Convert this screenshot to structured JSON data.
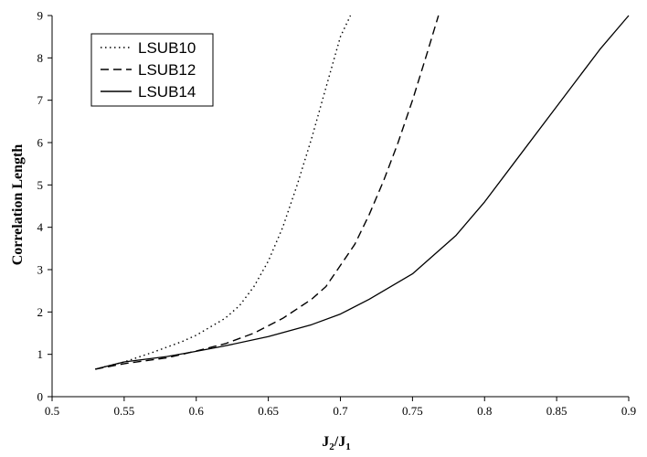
{
  "chart_data": {
    "type": "line",
    "title": "",
    "xlabel": {
      "main": "J",
      "sub1": "2",
      "slash": "/",
      "main2": "J",
      "sub2": "1"
    },
    "ylabel": "Correlation Length",
    "xlim": [
      0.5,
      0.9
    ],
    "ylim": [
      0,
      9
    ],
    "xticks": [
      "0.5",
      "0.55",
      "0.6",
      "0.65",
      "0.7",
      "0.75",
      "0.8",
      "0.85",
      "0.9"
    ],
    "yticks": [
      "0",
      "1",
      "2",
      "3",
      "4",
      "5",
      "6",
      "7",
      "8",
      "9"
    ],
    "grid": false,
    "legend_position": "top-left",
    "series": [
      {
        "name": "LSUB10",
        "dash": "dotted",
        "points": [
          [
            0.53,
            0.65
          ],
          [
            0.55,
            0.82
          ],
          [
            0.57,
            1.05
          ],
          [
            0.59,
            1.3
          ],
          [
            0.6,
            1.45
          ],
          [
            0.62,
            1.85
          ],
          [
            0.63,
            2.15
          ],
          [
            0.64,
            2.6
          ],
          [
            0.65,
            3.2
          ],
          [
            0.66,
            4.0
          ],
          [
            0.67,
            5.0
          ],
          [
            0.68,
            6.1
          ],
          [
            0.69,
            7.3
          ],
          [
            0.7,
            8.5
          ],
          [
            0.707,
            9.0
          ]
        ]
      },
      {
        "name": "LSUB12",
        "dash": "dashed",
        "points": [
          [
            0.53,
            0.65
          ],
          [
            0.55,
            0.78
          ],
          [
            0.58,
            0.92
          ],
          [
            0.6,
            1.08
          ],
          [
            0.62,
            1.25
          ],
          [
            0.64,
            1.5
          ],
          [
            0.66,
            1.85
          ],
          [
            0.68,
            2.3
          ],
          [
            0.69,
            2.6
          ],
          [
            0.7,
            3.1
          ],
          [
            0.71,
            3.6
          ],
          [
            0.72,
            4.3
          ],
          [
            0.73,
            5.1
          ],
          [
            0.74,
            6.0
          ],
          [
            0.75,
            7.0
          ],
          [
            0.76,
            8.1
          ],
          [
            0.768,
            9.0
          ]
        ]
      },
      {
        "name": "LSUB14",
        "dash": "solid",
        "points": [
          [
            0.53,
            0.65
          ],
          [
            0.55,
            0.82
          ],
          [
            0.58,
            0.95
          ],
          [
            0.6,
            1.07
          ],
          [
            0.62,
            1.2
          ],
          [
            0.65,
            1.42
          ],
          [
            0.68,
            1.7
          ],
          [
            0.7,
            1.95
          ],
          [
            0.72,
            2.3
          ],
          [
            0.75,
            2.9
          ],
          [
            0.78,
            3.8
          ],
          [
            0.8,
            4.6
          ],
          [
            0.82,
            5.5
          ],
          [
            0.85,
            6.85
          ],
          [
            0.88,
            8.2
          ],
          [
            0.9,
            9.0
          ]
        ]
      }
    ]
  }
}
